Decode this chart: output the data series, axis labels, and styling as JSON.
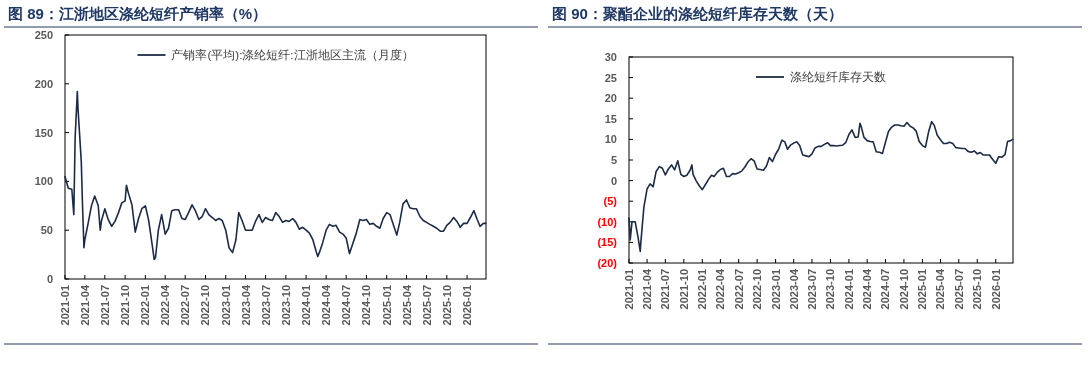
{
  "chart_data": [
    {
      "type": "line",
      "title": "图 89：江浙地区涤纶短纤产销率（%）",
      "legend": "top",
      "xlim": [
        "2021-01-01",
        "2026-03-28"
      ],
      "ylim": [
        0,
        250
      ],
      "yticks": [
        0,
        50,
        100,
        150,
        200,
        250
      ],
      "xticks": [
        {
          "value": "2021-01-01",
          "label": "2021-01"
        },
        {
          "value": "2021-04-01",
          "label": "2021-04"
        },
        {
          "value": "2021-07-01",
          "label": "2021-07"
        },
        {
          "value": "2021-10-01",
          "label": "2021-10"
        },
        {
          "value": "2022-01-01",
          "label": "2022-01"
        },
        {
          "value": "2022-04-01",
          "label": "2022-04"
        },
        {
          "value": "2022-07-01",
          "label": "2022-07"
        },
        {
          "value": "2022-10-01",
          "label": "2022-10"
        },
        {
          "value": "2023-01-01",
          "label": "2023-01"
        },
        {
          "value": "2023-04-01",
          "label": "2023-04"
        },
        {
          "value": "2023-07-01",
          "label": "2023-07"
        },
        {
          "value": "2023-10-01",
          "label": "2023-10"
        },
        {
          "value": "2024-01-01",
          "label": "2024-01"
        },
        {
          "value": "2024-04-01",
          "label": "2024-04"
        },
        {
          "value": "2024-07-01",
          "label": "2024-07"
        },
        {
          "value": "2024-10-01",
          "label": "2024-10"
        },
        {
          "value": "2025-01-01",
          "label": "2025-01"
        },
        {
          "value": "2025-04-01",
          "label": "2025-04"
        },
        {
          "value": "2025-07-01",
          "label": "2025-07"
        },
        {
          "value": "2025-10-01",
          "label": "2025-10"
        },
        {
          "value": "2026-01-01",
          "label": "2026-01"
        }
      ],
      "series": [
        {
          "name": "产销率(平均):涤纶短纤:江浙地区主流（月度）",
          "color": "#1c2b45",
          "x": [
            "2021-01-01",
            "2021-01-16",
            "2021-02-01",
            "2021-02-10",
            "2021-02-16",
            "2021-02-26",
            "2021-03-01",
            "2021-03-16",
            "2021-03-21",
            "2021-03-28",
            "2021-04-01",
            "2021-04-16",
            "2021-05-01",
            "2021-05-16",
            "2021-06-01",
            "2021-06-10",
            "2021-06-16",
            "2021-07-01",
            "2021-07-16",
            "2021-08-01",
            "2021-08-16",
            "2021-09-01",
            "2021-09-16",
            "2021-10-01",
            "2021-10-07",
            "2021-10-16",
            "2021-11-01",
            "2021-11-16",
            "2021-12-01",
            "2021-12-16",
            "2022-01-01",
            "2022-01-16",
            "2022-02-01",
            "2022-02-10",
            "2022-02-16",
            "2022-03-01",
            "2022-03-16",
            "2022-04-01",
            "2022-04-16",
            "2022-05-01",
            "2022-05-16",
            "2022-06-01",
            "2022-06-16",
            "2022-07-01",
            "2022-07-16",
            "2022-08-01",
            "2022-08-16",
            "2022-09-01",
            "2022-09-16",
            "2022-10-01",
            "2022-10-16",
            "2022-11-01",
            "2022-11-16",
            "2022-12-01",
            "2022-12-16",
            "2023-01-01",
            "2023-01-16",
            "2023-02-01",
            "2023-02-16",
            "2023-03-01",
            "2023-03-16",
            "2023-04-01",
            "2023-04-16",
            "2023-05-01",
            "2023-05-16",
            "2023-06-01",
            "2023-06-16",
            "2023-07-01",
            "2023-07-16",
            "2023-08-01",
            "2023-08-16",
            "2023-09-01",
            "2023-09-16",
            "2023-10-01",
            "2023-10-16",
            "2023-11-01",
            "2023-11-16",
            "2023-12-01",
            "2023-12-16",
            "2024-01-01",
            "2024-01-16",
            "2024-02-01",
            "2024-02-16",
            "2024-02-23",
            "2024-03-01",
            "2024-03-16",
            "2024-04-01",
            "2024-04-16",
            "2024-05-01",
            "2024-05-16",
            "2024-06-01",
            "2024-06-16",
            "2024-07-01",
            "2024-07-16",
            "2024-08-01",
            "2024-08-16",
            "2024-09-01",
            "2024-09-16",
            "2024-10-01",
            "2024-10-16",
            "2024-11-01",
            "2024-11-16",
            "2024-12-01",
            "2024-12-16",
            "2025-01-01",
            "2025-01-16",
            "2025-02-01",
            "2025-02-16",
            "2025-03-01",
            "2025-03-16",
            "2025-04-01",
            "2025-04-16",
            "2025-05-01",
            "2025-05-16",
            "2025-06-01",
            "2025-06-16",
            "2025-07-01",
            "2025-07-16",
            "2025-08-01",
            "2025-08-16",
            "2025-09-01",
            "2025-09-16",
            "2025-10-01",
            "2025-10-16",
            "2025-11-01",
            "2025-11-16",
            "2025-12-01",
            "2025-12-16",
            "2026-01-01",
            "2026-01-16",
            "2026-02-01",
            "2026-02-16",
            "2026-03-01",
            "2026-03-16",
            "2026-03-27"
          ],
          "values": [
            105,
            93,
            92,
            66,
            145,
            192,
            175,
            120,
            80,
            32,
            40,
            57,
            75,
            85,
            75,
            50,
            60,
            72,
            61,
            54,
            59,
            68,
            78,
            80,
            96,
            88,
            76,
            48,
            62,
            72,
            75,
            60,
            35,
            20,
            22,
            50,
            66,
            46,
            52,
            70,
            71,
            71,
            62,
            61,
            68,
            76,
            70,
            61,
            64,
            72,
            66,
            63,
            60,
            62,
            60,
            50,
            32,
            27,
            40,
            68,
            60,
            50,
            50,
            50,
            59,
            66,
            58,
            63,
            61,
            60,
            68,
            64,
            58,
            60,
            59,
            62,
            58,
            51,
            53,
            50,
            47,
            40,
            28,
            23,
            27,
            37,
            50,
            56,
            54,
            55,
            48,
            46,
            42,
            26,
            37,
            47,
            61,
            60,
            61,
            56,
            57,
            54,
            52,
            62,
            68,
            66,
            55,
            45,
            58,
            77,
            81,
            73,
            72,
            72,
            64,
            60,
            58,
            56,
            54,
            52,
            49,
            49,
            55,
            58,
            63,
            59,
            53,
            57,
            57,
            63,
            70,
            61,
            54,
            57,
            57
          ]
        }
      ]
    },
    {
      "type": "line",
      "title": "图 90：聚酯企业的涤纶短纤库存天数（天）",
      "legend": "top",
      "xlim": [
        "2021-01-01",
        "2026-03-28"
      ],
      "ylim": [
        -20,
        30
      ],
      "yticks": [
        30,
        25,
        20,
        15,
        10,
        5,
        0,
        {
          "value": -5,
          "label": "(5)"
        },
        {
          "value": -10,
          "label": "(10)"
        },
        {
          "value": -15,
          "label": "(15)"
        },
        {
          "value": -20,
          "label": "(20)"
        }
      ],
      "xticks": [
        {
          "value": "2021-01-01",
          "label": "2021-01"
        },
        {
          "value": "2021-04-01",
          "label": "2021-04"
        },
        {
          "value": "2021-07-01",
          "label": "2021-07"
        },
        {
          "value": "2021-10-01",
          "label": "2021-10"
        },
        {
          "value": "2022-01-01",
          "label": "2022-01"
        },
        {
          "value": "2022-04-01",
          "label": "2022-04"
        },
        {
          "value": "2022-07-01",
          "label": "2022-07"
        },
        {
          "value": "2022-10-01",
          "label": "2022-10"
        },
        {
          "value": "2023-01-01",
          "label": "2023-01"
        },
        {
          "value": "2023-04-01",
          "label": "2023-04"
        },
        {
          "value": "2023-07-01",
          "label": "2023-07"
        },
        {
          "value": "2023-10-01",
          "label": "2023-10"
        },
        {
          "value": "2024-01-01",
          "label": "2024-01"
        },
        {
          "value": "2024-04-01",
          "label": "2024-04"
        },
        {
          "value": "2024-07-01",
          "label": "2024-07"
        },
        {
          "value": "2024-10-01",
          "label": "2024-10"
        },
        {
          "value": "2025-01-01",
          "label": "2025-01"
        },
        {
          "value": "2025-04-01",
          "label": "2025-04"
        },
        {
          "value": "2025-07-01",
          "label": "2025-07"
        },
        {
          "value": "2025-10-01",
          "label": "2025-10"
        },
        {
          "value": "2026-01-01",
          "label": "2026-01"
        }
      ],
      "series": [
        {
          "name": "涤纶短纤库存天数",
          "color": "#1c2b45",
          "x": [
            "2021-01-01",
            "2021-01-07",
            "2021-01-16",
            "2021-02-01",
            "2021-02-16",
            "2021-02-26",
            "2021-03-01",
            "2021-03-16",
            "2021-04-01",
            "2021-04-16",
            "2021-05-01",
            "2021-05-16",
            "2021-06-01",
            "2021-06-16",
            "2021-07-01",
            "2021-07-16",
            "2021-08-01",
            "2021-08-16",
            "2021-09-01",
            "2021-09-16",
            "2021-10-01",
            "2021-10-16",
            "2021-11-01",
            "2021-11-10",
            "2021-11-16",
            "2021-12-01",
            "2021-12-16",
            "2022-01-01",
            "2022-01-16",
            "2022-02-01",
            "2022-02-16",
            "2022-03-01",
            "2022-03-16",
            "2022-04-01",
            "2022-04-16",
            "2022-05-01",
            "2022-05-16",
            "2022-06-01",
            "2022-06-16",
            "2022-07-01",
            "2022-07-16",
            "2022-08-01",
            "2022-08-16",
            "2022-09-01",
            "2022-09-16",
            "2022-10-01",
            "2022-10-16",
            "2022-11-01",
            "2022-11-16",
            "2022-12-01",
            "2022-12-16",
            "2023-01-01",
            "2023-01-16",
            "2023-02-01",
            "2023-02-16",
            "2023-03-01",
            "2023-03-16",
            "2023-04-01",
            "2023-04-16",
            "2023-05-01",
            "2023-05-16",
            "2023-06-01",
            "2023-06-16",
            "2023-07-01",
            "2023-07-16",
            "2023-08-01",
            "2023-08-16",
            "2023-09-01",
            "2023-09-16",
            "2023-10-01",
            "2023-10-16",
            "2023-11-01",
            "2023-11-16",
            "2023-12-01",
            "2023-12-16",
            "2024-01-01",
            "2024-01-16",
            "2024-02-01",
            "2024-02-16",
            "2024-02-25",
            "2024-03-01",
            "2024-03-16",
            "2024-04-01",
            "2024-04-16",
            "2024-05-01",
            "2024-05-16",
            "2024-06-01",
            "2024-06-16",
            "2024-07-01",
            "2024-07-16",
            "2024-08-01",
            "2024-08-16",
            "2024-09-01",
            "2024-09-16",
            "2024-10-01",
            "2024-10-16",
            "2024-11-01",
            "2024-11-16",
            "2024-12-01",
            "2024-12-16",
            "2025-01-01",
            "2025-01-16",
            "2025-02-01",
            "2025-02-16",
            "2025-03-01",
            "2025-03-16",
            "2025-04-01",
            "2025-04-16",
            "2025-05-01",
            "2025-05-16",
            "2025-06-01",
            "2025-06-16",
            "2025-07-01",
            "2025-07-16",
            "2025-08-01",
            "2025-08-16",
            "2025-09-01",
            "2025-09-16",
            "2025-10-01",
            "2025-10-16",
            "2025-11-01",
            "2025-11-16",
            "2025-12-01",
            "2025-12-16",
            "2026-01-01",
            "2026-01-16",
            "2026-02-01",
            "2026-02-16",
            "2026-03-01",
            "2026-03-16",
            "2026-03-27"
          ],
          "values": [
            -9.1,
            -14.4,
            -10,
            -10,
            -14,
            -17.2,
            -15,
            -6.5,
            -2,
            -0.8,
            -1.5,
            2.2,
            3.4,
            3,
            1.4,
            2.8,
            3.8,
            2.6,
            4.8,
            1.5,
            1,
            1.3,
            2.5,
            3.8,
            1.5,
            0,
            -1.2,
            -2.2,
            -1,
            0.3,
            1.3,
            1,
            2,
            2.7,
            3,
            1,
            1,
            1.7,
            1.6,
            1.9,
            2.3,
            3.3,
            4.5,
            5.3,
            4.8,
            2.8,
            2.7,
            2.5,
            3.5,
            5.6,
            4.6,
            6.4,
            7.6,
            9.8,
            9.4,
            7.6,
            8.6,
            9.1,
            9.4,
            8.5,
            6.2,
            6,
            5.8,
            6.5,
            7.9,
            8.3,
            8.3,
            8.8,
            9.2,
            8.5,
            8.5,
            8.4,
            8.5,
            8.6,
            9.2,
            11.2,
            12.3,
            10.5,
            10.6,
            13.9,
            13.3,
            10.5,
            9.7,
            9.5,
            9.4,
            7,
            6.9,
            6.6,
            9.3,
            11.9,
            13,
            13.5,
            13.5,
            13.3,
            13.2,
            14.1,
            13.2,
            12.8,
            12,
            9.5,
            8.5,
            8.1,
            11.9,
            14.3,
            13.4,
            11,
            9.9,
            9,
            9,
            9.3,
            9,
            8,
            7.9,
            7.8,
            7.8,
            7.1,
            6.9,
            7.2,
            6.5,
            6.8,
            6.2,
            6.2,
            6.2,
            5.2,
            4.2,
            5.8,
            5.7,
            6.3,
            9.5,
            9.7,
            10
          ]
        }
      ]
    }
  ]
}
